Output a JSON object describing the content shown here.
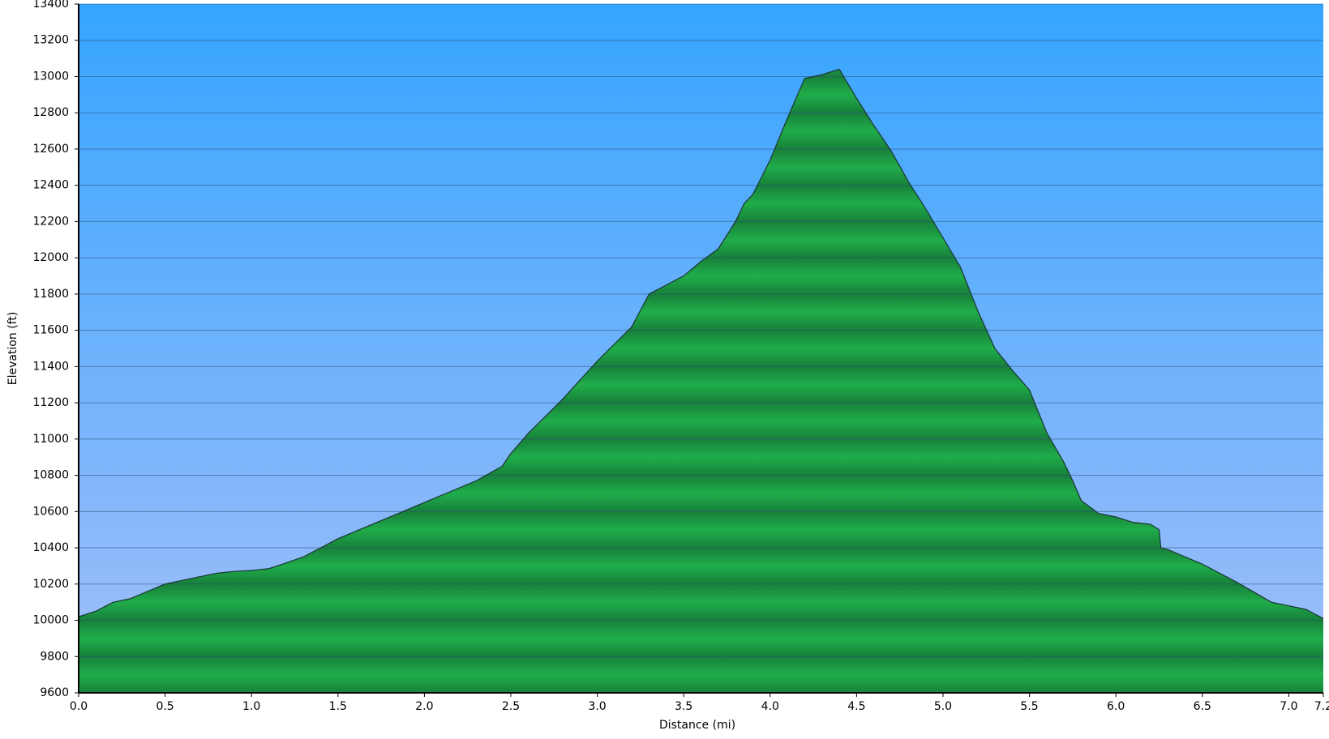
{
  "chart_data": {
    "type": "area",
    "xlabel": "Distance   (mi)",
    "ylabel": "Elevation (ft)",
    "x": [
      0,
      0.1,
      0.2,
      0.3,
      0.4,
      0.5,
      0.6,
      0.7,
      0.8,
      0.9,
      1.0,
      1.1,
      1.15,
      1.3,
      1.4,
      1.5,
      1.7,
      1.9,
      2.1,
      2.3,
      2.45,
      2.5,
      2.6,
      2.8,
      3.0,
      3.2,
      3.3,
      3.4,
      3.5,
      3.6,
      3.7,
      3.8,
      3.85,
      3.9,
      4.0,
      4.1,
      4.2,
      4.3,
      4.4,
      4.5,
      4.6,
      4.7,
      4.8,
      4.9,
      5.0,
      5.1,
      5.2,
      5.3,
      5.4,
      5.5,
      5.6,
      5.7,
      5.75,
      5.8,
      5.9,
      6.0,
      6.1,
      6.2,
      6.25,
      6.26,
      6.3,
      6.5,
      6.7,
      6.9,
      7.0,
      7.1,
      7.2
    ],
    "values": [
      10020,
      10050,
      10100,
      10120,
      10160,
      10200,
      10220,
      10240,
      10260,
      10270,
      10275,
      10285,
      10300,
      10350,
      10400,
      10450,
      10530,
      10610,
      10690,
      10770,
      10850,
      10920,
      11030,
      11220,
      11430,
      11620,
      11800,
      11850,
      11900,
      11980,
      12050,
      12200,
      12300,
      12350,
      12540,
      12770,
      12990,
      13010,
      13040,
      12880,
      12730,
      12590,
      12420,
      12270,
      12110,
      11950,
      11710,
      11500,
      11380,
      11270,
      11035,
      10870,
      10770,
      10660,
      10590,
      10570,
      10540,
      10530,
      10500,
      10400,
      10390,
      10310,
      10210,
      10100,
      10080,
      10060,
      10010
    ],
    "color": "#20ad4a",
    "xlim": [
      0,
      7.2
    ],
    "xticks": [
      {
        "value": 0,
        "label": "0.0"
      },
      0.5,
      {
        "value": 1,
        "label": "1.0"
      },
      1.5,
      {
        "value": 2,
        "label": "2.0"
      },
      2.5,
      {
        "value": 3,
        "label": "3.0"
      },
      3.5,
      {
        "value": 4,
        "label": "4.0"
      },
      4.5,
      {
        "value": 5,
        "label": "5.0"
      },
      5.5,
      {
        "value": 6,
        "label": "6.0"
      },
      6.5,
      {
        "value": 7,
        "label": "7.0"
      },
      7.2
    ],
    "ylim": [
      9600,
      13400
    ],
    "yticks": [
      9600,
      9800,
      10000,
      10200,
      10400,
      10600,
      10800,
      11000,
      11200,
      11400,
      11600,
      11800,
      12000,
      12200,
      12400,
      12600,
      12800,
      13000,
      13200,
      13400
    ],
    "grid": true
  }
}
